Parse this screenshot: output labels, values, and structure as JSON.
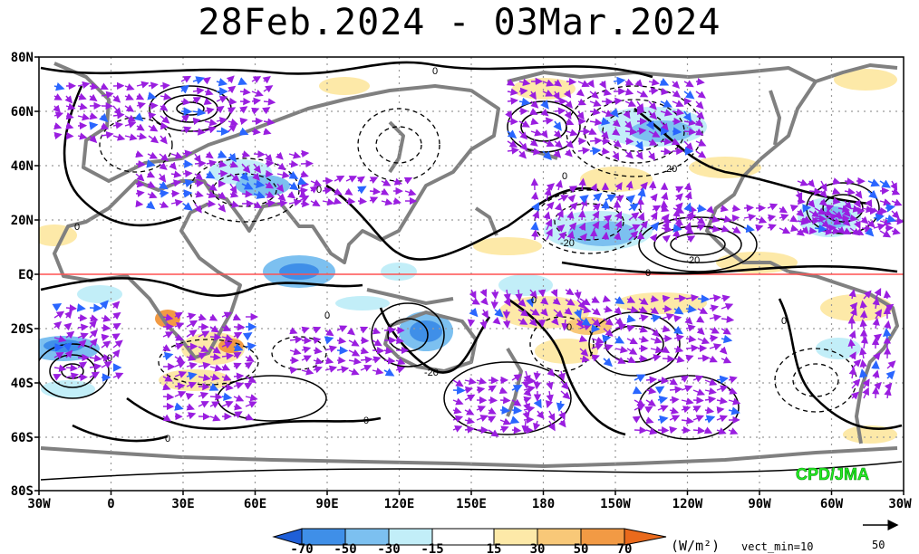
{
  "title": "28Feb.2024 - 03Mar.2024",
  "credit": "CPD/JMA",
  "lat_labels": [
    "80N",
    "60N",
    "40N",
    "20N",
    "EQ",
    "20S",
    "40S",
    "60S",
    "80S"
  ],
  "lon_labels": [
    "30W",
    "0",
    "30E",
    "60E",
    "90E",
    "120E",
    "150E",
    "180",
    "150W",
    "120W",
    "90W",
    "60W",
    "30W"
  ],
  "contour_labels": [
    "0",
    "0",
    "0",
    "0",
    "0",
    "0",
    "0",
    "0",
    "0",
    "0",
    "0",
    "0",
    "20",
    "-20",
    "20",
    "-20"
  ],
  "colorbar": {
    "ticks": [
      "-70",
      "-50",
      "-30",
      "-15",
      "15",
      "30",
      "50",
      "70"
    ],
    "colors": [
      "#1f5fd8",
      "#3f8fe8",
      "#7cc0f0",
      "#c2eef8",
      "#ffffff",
      "#fde9a8",
      "#f8c878",
      "#f29a44",
      "#ea6a1c"
    ],
    "unit": "(W/m²)",
    "vect_min": "vect_min=10",
    "ref_vector": "50"
  },
  "colors": {
    "land": "#808080",
    "equator": "#ff5050",
    "vectors": "#9a1ee0",
    "vectors_strong": "#2a66ff"
  }
}
